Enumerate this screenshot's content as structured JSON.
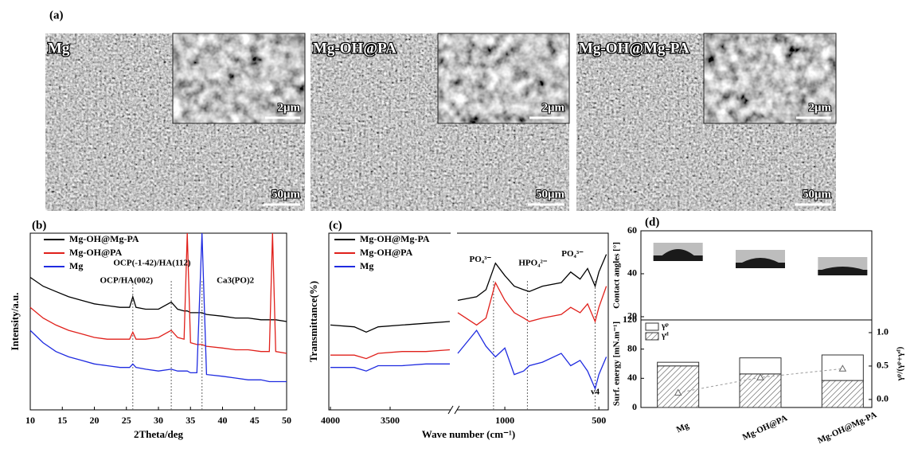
{
  "figure": {
    "panel_label": "(a)",
    "images": [
      {
        "label": "Mg",
        "inset_scale": "2μm",
        "scale": "50μm"
      },
      {
        "label": "Mg-OH@PA",
        "inset_scale": "2μm",
        "scale": "50μm"
      },
      {
        "label": "Mg-OH@Mg-PA",
        "inset_scale": "2μm",
        "scale": "50μm"
      }
    ]
  },
  "chart_data": [
    {
      "type": "line",
      "panel": "(b)",
      "xlabel": "2Theta/deg",
      "ylabel": "Intensity/a.u.",
      "x": [
        10,
        12,
        14,
        16,
        18,
        20,
        22,
        24,
        25.5,
        26,
        26.5,
        28,
        30,
        32,
        33,
        34,
        34.5,
        35,
        36,
        36.8,
        37.5,
        40,
        42,
        44,
        46,
        47.3,
        47.8,
        48.3,
        50
      ],
      "xlim": [
        10,
        50
      ],
      "xticks": [
        10,
        15,
        20,
        25,
        30,
        35,
        40,
        45,
        50
      ],
      "ylim": [
        0,
        100
      ],
      "legend": "upper left",
      "series": [
        {
          "name": "Mg-OH@Mg-PA",
          "color": "#000000",
          "values": [
            75,
            70,
            67,
            64,
            62,
            60,
            59,
            58,
            58,
            64,
            58,
            57,
            57,
            61,
            57,
            56,
            56,
            55,
            55,
            55,
            54,
            53,
            52,
            52,
            51,
            51,
            51,
            51,
            50
          ]
        },
        {
          "name": "Mg-OH@PA",
          "color": "#e0201b",
          "values": [
            58,
            52,
            48,
            45,
            43,
            41,
            40,
            40,
            40,
            44,
            40,
            40,
            41,
            45,
            41,
            40,
            100,
            38,
            37,
            37,
            36,
            35,
            34,
            34,
            33,
            33,
            100,
            33,
            32
          ]
        },
        {
          "name": "Mg",
          "color": "#1f2be0",
          "values": [
            45,
            38,
            33,
            30,
            28,
            26,
            25,
            24,
            24,
            26,
            24,
            23,
            22,
            23,
            22,
            22,
            22,
            21,
            21,
            100,
            20,
            19,
            18,
            17,
            17,
            16,
            16,
            16,
            16
          ]
        }
      ],
      "reference_lines": [
        26,
        32,
        36.8
      ],
      "annotations": [
        {
          "text": "OCP/HA(002)",
          "x": 25,
          "y": 73
        },
        {
          "text": "OCP(-1-42)/HA(112)",
          "x": 29,
          "y": 83
        },
        {
          "text": "Ca3(PO)2",
          "x": 42,
          "y": 73
        }
      ]
    },
    {
      "type": "line",
      "panel": "(c)",
      "xlabel": "Wave number (cm⁻¹)",
      "ylabel": "Transmittance(%)",
      "x": [
        4000,
        3800,
        3700,
        3600,
        3400,
        3200,
        3000,
        2000,
        1250,
        1150,
        1100,
        1050,
        1000,
        950,
        900,
        870,
        800,
        700,
        650,
        600,
        560,
        520,
        500,
        460
      ],
      "xlim": [
        4000,
        450
      ],
      "x_break": [
        3000,
        1250
      ],
      "xticks": [
        4000,
        3500,
        1000,
        500
      ],
      "ylim": [
        0,
        100
      ],
      "legend": "upper left",
      "series": [
        {
          "name": "Mg-OH@Mg-PA",
          "color": "#000000",
          "values": [
            48,
            47,
            44,
            47,
            48,
            49,
            50,
            null,
            62,
            64,
            68,
            83,
            76,
            70,
            68,
            67,
            70,
            72,
            78,
            74,
            80,
            70,
            78,
            88
          ]
        },
        {
          "name": "Mg-OH@PA",
          "color": "#e0201b",
          "values": [
            31,
            31,
            29,
            32,
            33,
            33,
            34,
            null,
            55,
            48,
            52,
            72,
            62,
            55,
            52,
            50,
            52,
            54,
            58,
            55,
            60,
            50,
            58,
            70
          ]
        },
        {
          "name": "Mg",
          "color": "#1f2be0",
          "values": [
            24,
            24,
            22,
            25,
            25,
            26,
            26,
            null,
            32,
            45,
            36,
            30,
            35,
            20,
            22,
            25,
            27,
            32,
            25,
            28,
            22,
            12,
            20,
            30
          ]
        }
      ],
      "reference_lines": [
        1060,
        880,
        520
      ],
      "annotations": [
        {
          "text": "PO₄³⁻",
          "x": 1130,
          "y": 85
        },
        {
          "text": "HPO₄²⁻",
          "x": 850,
          "y": 83
        },
        {
          "text": "PO₄³⁻",
          "x": 640,
          "y": 88
        },
        {
          "text": "v4",
          "x": 520,
          "y": 10
        }
      ]
    },
    {
      "type": "bar",
      "panel": "(d)",
      "categories": [
        "Mg",
        "Mg-OH@PA",
        "Mg-OH@Mg-PA"
      ],
      "stacked": true,
      "ylabel": "Surf. energy [mN.m⁻¹]",
      "ylim": [
        0,
        120
      ],
      "yticks": [
        0,
        40,
        80,
        120
      ],
      "y2label": "γᵖ/(γᵖ+γᵈ)",
      "y2lim": [
        -0.12,
        1.19
      ],
      "y2ticks": [
        {
          "value": 0,
          "label": "0.0"
        },
        {
          "value": 0.5,
          "label": "0.5"
        },
        {
          "value": 1,
          "label": "1.0"
        }
      ],
      "series": [
        {
          "name": "γᵈ",
          "color": "#ffffff",
          "hatch": true,
          "values": [
            57,
            46,
            37
          ]
        },
        {
          "name": "γᵖ",
          "color": "#ffffff",
          "values": [
            5,
            22,
            35
          ]
        },
        {
          "axis": "y2",
          "color": "#999999",
          "marker": "triangle",
          "values": [
            0.1,
            0.33,
            0.46
          ]
        }
      ],
      "top_panel": {
        "ylabel": "Contact angles [°]",
        "ylim": [
          18.5,
          60
        ],
        "yticks": [
          20,
          40,
          60
        ]
      }
    }
  ]
}
